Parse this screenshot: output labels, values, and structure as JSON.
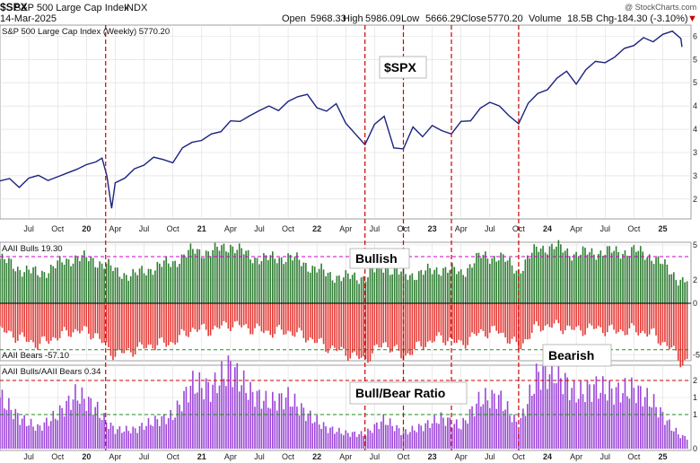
{
  "header": {
    "symbol": "$SPX",
    "name": "S&P 500 Large Cap Index",
    "exchange": "INDX",
    "date": "14-Mar-2025",
    "open_label": "Open",
    "open": "5968.33",
    "high_label": "High",
    "high": "5986.09",
    "low_label": "Low",
    "low": "5666.29",
    "close_label": "Close",
    "close": "5770.20",
    "volume_label": "Volume",
    "volume": "18.5B",
    "chg_label": "Chg",
    "chg": "-184.30 (-3.10%)",
    "chg_arrow": "▼",
    "logo": "@ StockCharts.com"
  },
  "panels": {
    "price_label": "S&P 500 Large Cap Index (Weekly) 5770.20",
    "bulls_label": "AAII Bulls 19.30",
    "bears_label": "AAII Bears -57.10",
    "ratio_label": "AAII Bulls/AAII Bears 0.34"
  },
  "annotations": {
    "spx": "$SPX",
    "bullish": "Bullish",
    "bearish": "Bearish",
    "ratio": "Bull/Bear Ratio"
  },
  "colors": {
    "price_line": "#1a237e",
    "bulls": "#2e7d32",
    "bears": "#e53935",
    "ratio": "#9c46d8",
    "vline": "#cc0000",
    "grid": "#dcdcdc",
    "ref_line_bulls": "#d000d0",
    "ref_line_bears": "#228b22",
    "ref_line_ratio_hi": "#cc0000",
    "ref_line_ratio_lo": "#228b22"
  },
  "chart_data": [
    {
      "type": "line",
      "title": "S&P 500 Large Cap Index (Weekly) 5770.20",
      "x_ticks": [
        "Jul",
        "Oct",
        "20",
        "Apr",
        "Jul",
        "Oct",
        "21",
        "Apr",
        "Jul",
        "Oct",
        "22",
        "Apr",
        "Jul",
        "Oct",
        "23",
        "Apr",
        "Jul",
        "Oct",
        "24",
        "Apr",
        "Jul",
        "Oct",
        "25"
      ],
      "x_range": [
        "2019-04",
        "2025-03"
      ],
      "points": [
        [
          "2019-04",
          2890
        ],
        [
          "2019-05",
          2940
        ],
        [
          "2019-06",
          2750
        ],
        [
          "2019-07",
          2950
        ],
        [
          "2019-08",
          3010
        ],
        [
          "2019-09",
          2900
        ],
        [
          "2019-10",
          2980
        ],
        [
          "2019-11",
          3060
        ],
        [
          "2019-12",
          3140
        ],
        [
          "2020-01",
          3240
        ],
        [
          "2020-02",
          3300
        ],
        [
          "2020-02-20",
          3380
        ],
        [
          "2020-03-05",
          3000
        ],
        [
          "2020-03-20",
          2300
        ],
        [
          "2020-04",
          2850
        ],
        [
          "2020-05",
          2950
        ],
        [
          "2020-06",
          3150
        ],
        [
          "2020-07",
          3230
        ],
        [
          "2020-08",
          3400
        ],
        [
          "2020-09",
          3350
        ],
        [
          "2020-10",
          3280
        ],
        [
          "2020-11",
          3600
        ],
        [
          "2020-12",
          3720
        ],
        [
          "2021-01",
          3760
        ],
        [
          "2021-02",
          3900
        ],
        [
          "2021-03",
          3950
        ],
        [
          "2021-04",
          4180
        ],
        [
          "2021-05",
          4170
        ],
        [
          "2021-06",
          4290
        ],
        [
          "2021-07",
          4400
        ],
        [
          "2021-08",
          4500
        ],
        [
          "2021-09",
          4400
        ],
        [
          "2021-10",
          4600
        ],
        [
          "2021-11",
          4700
        ],
        [
          "2021-12",
          4750
        ],
        [
          "2022-01",
          4460
        ],
        [
          "2022-02",
          4390
        ],
        [
          "2022-03",
          4550
        ],
        [
          "2022-04",
          4130
        ],
        [
          "2022-05",
          3900
        ],
        [
          "2022-06",
          3670
        ],
        [
          "2022-07",
          4110
        ],
        [
          "2022-08",
          4280
        ],
        [
          "2022-09",
          3600
        ],
        [
          "2022-10",
          3580
        ],
        [
          "2022-11",
          4050
        ],
        [
          "2022-12",
          3840
        ],
        [
          "2023-01",
          4080
        ],
        [
          "2023-02",
          3970
        ],
        [
          "2023-03",
          3900
        ],
        [
          "2023-04",
          4170
        ],
        [
          "2023-05",
          4180
        ],
        [
          "2023-06",
          4450
        ],
        [
          "2023-07",
          4580
        ],
        [
          "2023-08",
          4500
        ],
        [
          "2023-09",
          4290
        ],
        [
          "2023-10",
          4120
        ],
        [
          "2023-11",
          4560
        ],
        [
          "2023-12",
          4770
        ],
        [
          "2024-01",
          4850
        ],
        [
          "2024-02",
          5100
        ],
        [
          "2024-03",
          5250
        ],
        [
          "2024-04",
          4970
        ],
        [
          "2024-05",
          5280
        ],
        [
          "2024-06",
          5460
        ],
        [
          "2024-07",
          5430
        ],
        [
          "2024-08",
          5550
        ],
        [
          "2024-09",
          5740
        ],
        [
          "2024-10",
          5800
        ],
        [
          "2024-11",
          5970
        ],
        [
          "2024-12",
          5880
        ],
        [
          "2025-01",
          6040
        ],
        [
          "2025-02",
          6110
        ],
        [
          "2025-02-28",
          5950
        ],
        [
          "2025-03",
          5770
        ]
      ]
    },
    {
      "type": "bar",
      "title": "AAII Bulls 19.30",
      "last_value": 19.3,
      "series": [
        {
          "name": "AAII Bulls"
        }
      ],
      "monthly_values": [
        {
          "x": "2019-04",
          "v": 38
        },
        {
          "x": "2019-06",
          "v": 30
        },
        {
          "x": "2019-08",
          "v": 25
        },
        {
          "x": "2019-10",
          "v": 33
        },
        {
          "x": "2019-12",
          "v": 40
        },
        {
          "x": "2020-02",
          "v": 36
        },
        {
          "x": "2020-03",
          "v": 34
        },
        {
          "x": "2020-04",
          "v": 27
        },
        {
          "x": "2020-06",
          "v": 24
        },
        {
          "x": "2020-08",
          "v": 31
        },
        {
          "x": "2020-10",
          "v": 35
        },
        {
          "x": "2020-12",
          "v": 45
        },
        {
          "x": "2021-02",
          "v": 44
        },
        {
          "x": "2021-04",
          "v": 50
        },
        {
          "x": "2021-06",
          "v": 40
        },
        {
          "x": "2021-08",
          "v": 38
        },
        {
          "x": "2021-10",
          "v": 40
        },
        {
          "x": "2021-12",
          "v": 33
        },
        {
          "x": "2022-02",
          "v": 25
        },
        {
          "x": "2022-04",
          "v": 22
        },
        {
          "x": "2022-06",
          "v": 23
        },
        {
          "x": "2022-08",
          "v": 32
        },
        {
          "x": "2022-10",
          "v": 24
        },
        {
          "x": "2022-12",
          "v": 26
        },
        {
          "x": "2023-02",
          "v": 30
        },
        {
          "x": "2023-04",
          "v": 26
        },
        {
          "x": "2023-06",
          "v": 40
        },
        {
          "x": "2023-08",
          "v": 40
        },
        {
          "x": "2023-10",
          "v": 28
        },
        {
          "x": "2023-12",
          "v": 48
        },
        {
          "x": "2024-02",
          "v": 48
        },
        {
          "x": "2024-04",
          "v": 42
        },
        {
          "x": "2024-06",
          "v": 44
        },
        {
          "x": "2024-08",
          "v": 44
        },
        {
          "x": "2024-10",
          "v": 45
        },
        {
          "x": "2024-12",
          "v": 40
        },
        {
          "x": "2025-02",
          "v": 26
        },
        {
          "x": "2025-03",
          "v": 19.3
        }
      ]
    },
    {
      "type": "bar",
      "title": "AAII Bears -57.10",
      "last_value": -57.1,
      "series": [
        {
          "name": "AAII Bears"
        }
      ],
      "monthly_values": [
        {
          "x": "2019-04",
          "v": -26
        },
        {
          "x": "2019-06",
          "v": -33
        },
        {
          "x": "2019-08",
          "v": -40
        },
        {
          "x": "2019-10",
          "v": -32
        },
        {
          "x": "2019-12",
          "v": -26
        },
        {
          "x": "2020-02",
          "v": -30
        },
        {
          "x": "2020-03",
          "v": -42
        },
        {
          "x": "2020-04",
          "v": -50
        },
        {
          "x": "2020-06",
          "v": -45
        },
        {
          "x": "2020-08",
          "v": -40
        },
        {
          "x": "2020-10",
          "v": -38
        },
        {
          "x": "2020-12",
          "v": -25
        },
        {
          "x": "2021-02",
          "v": -26
        },
        {
          "x": "2021-04",
          "v": -20
        },
        {
          "x": "2021-06",
          "v": -24
        },
        {
          "x": "2021-08",
          "v": -28
        },
        {
          "x": "2021-10",
          "v": -27
        },
        {
          "x": "2021-12",
          "v": -33
        },
        {
          "x": "2022-02",
          "v": -42
        },
        {
          "x": "2022-04",
          "v": -48
        },
        {
          "x": "2022-06",
          "v": -55
        },
        {
          "x": "2022-08",
          "v": -38
        },
        {
          "x": "2022-10",
          "v": -52
        },
        {
          "x": "2022-12",
          "v": -40
        },
        {
          "x": "2023-02",
          "v": -33
        },
        {
          "x": "2023-04",
          "v": -40
        },
        {
          "x": "2023-06",
          "v": -28
        },
        {
          "x": "2023-08",
          "v": -27
        },
        {
          "x": "2023-10",
          "v": -43
        },
        {
          "x": "2023-12",
          "v": -22
        },
        {
          "x": "2024-02",
          "v": -22
        },
        {
          "x": "2024-04",
          "v": -26
        },
        {
          "x": "2024-06",
          "v": -24
        },
        {
          "x": "2024-08",
          "v": -27
        },
        {
          "x": "2024-10",
          "v": -26
        },
        {
          "x": "2024-12",
          "v": -30
        },
        {
          "x": "2025-02",
          "v": -45
        },
        {
          "x": "2025-03",
          "v": -57.1
        }
      ]
    },
    {
      "type": "bar",
      "title": "AAII Bulls/AAII Bears 0.34",
      "last_value": 0.34,
      "series": [
        {
          "name": "AAII Bulls/AAII Bears"
        }
      ],
      "monthly_values": [
        {
          "x": "2019-04",
          "v": 1.5
        },
        {
          "x": "2019-06",
          "v": 0.9
        },
        {
          "x": "2019-08",
          "v": 0.6
        },
        {
          "x": "2019-10",
          "v": 1.0
        },
        {
          "x": "2019-12",
          "v": 1.6
        },
        {
          "x": "2020-02",
          "v": 1.2
        },
        {
          "x": "2020-03",
          "v": 0.8
        },
        {
          "x": "2020-04",
          "v": 0.55
        },
        {
          "x": "2020-06",
          "v": 0.55
        },
        {
          "x": "2020-08",
          "v": 0.8
        },
        {
          "x": "2020-10",
          "v": 0.95
        },
        {
          "x": "2020-12",
          "v": 1.9
        },
        {
          "x": "2021-02",
          "v": 1.75
        },
        {
          "x": "2021-04",
          "v": 2.4
        },
        {
          "x": "2021-06",
          "v": 1.65
        },
        {
          "x": "2021-08",
          "v": 1.35
        },
        {
          "x": "2021-10",
          "v": 1.5
        },
        {
          "x": "2021-12",
          "v": 1.0
        },
        {
          "x": "2022-02",
          "v": 0.6
        },
        {
          "x": "2022-04",
          "v": 0.45
        },
        {
          "x": "2022-06",
          "v": 0.42
        },
        {
          "x": "2022-08",
          "v": 0.85
        },
        {
          "x": "2022-10",
          "v": 0.46
        },
        {
          "x": "2022-12",
          "v": 0.65
        },
        {
          "x": "2023-02",
          "v": 0.9
        },
        {
          "x": "2023-04",
          "v": 0.65
        },
        {
          "x": "2023-06",
          "v": 1.45
        },
        {
          "x": "2023-08",
          "v": 1.5
        },
        {
          "x": "2023-10",
          "v": 0.65
        },
        {
          "x": "2023-12",
          "v": 2.2
        },
        {
          "x": "2024-02",
          "v": 2.2
        },
        {
          "x": "2024-04",
          "v": 1.6
        },
        {
          "x": "2024-06",
          "v": 1.8
        },
        {
          "x": "2024-08",
          "v": 1.65
        },
        {
          "x": "2024-10",
          "v": 1.75
        },
        {
          "x": "2024-12",
          "v": 1.35
        },
        {
          "x": "2025-02",
          "v": 0.6
        },
        {
          "x": "2025-03",
          "v": 0.34
        }
      ]
    }
  ],
  "vertical_markers": [
    "2020-03",
    "2022-06",
    "2022-10",
    "2023-03",
    "2023-10"
  ]
}
